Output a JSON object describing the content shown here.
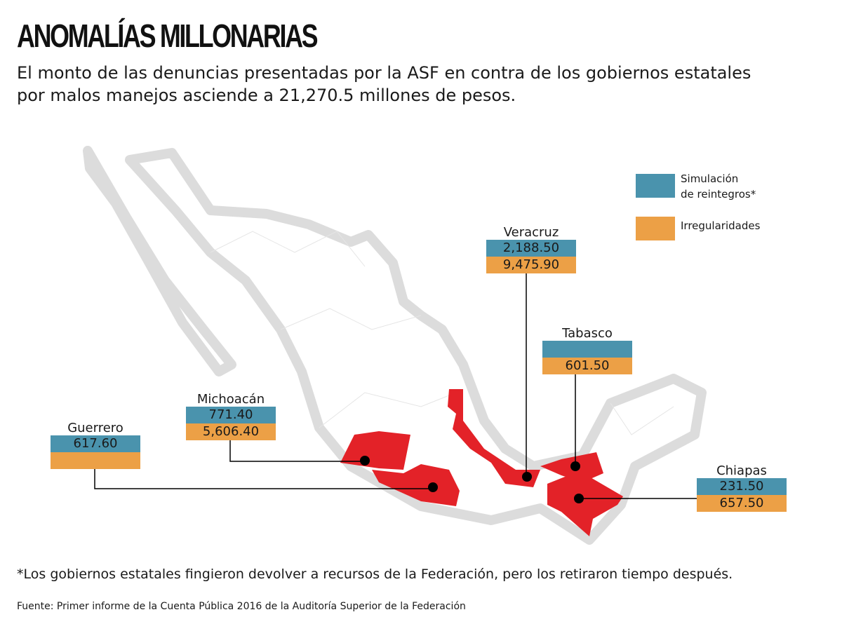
{
  "title": "ANOMALÍAS MILLONARIAS",
  "subtitle_line1": "El monto de las denuncias presentadas por la ASF en contra de los gobiernos estatales",
  "subtitle_line2": "por malos manejos asciende a 21,270.5 millones de pesos.",
  "legend": {
    "simulacion_line1": "Simulación",
    "simulacion_line2": "de reintegros*",
    "irregularidades": "Irregularidades"
  },
  "colors": {
    "simulacion": "#4a93ad",
    "irregularidades": "#eca046",
    "highlight": "#e32228",
    "outline": "#dcdcdc"
  },
  "states": [
    {
      "name": "Guerrero",
      "simulacion": "617.60",
      "irregularidades": ""
    },
    {
      "name": "Michoacán",
      "simulacion": "771.40",
      "irregularidades": "5,606.40"
    },
    {
      "name": "Veracruz",
      "simulacion": "2,188.50",
      "irregularidades": "9,475.90"
    },
    {
      "name": "Tabasco",
      "simulacion": "",
      "irregularidades": "601.50"
    },
    {
      "name": "Chiapas",
      "simulacion": "231.50",
      "irregularidades": "657.50"
    }
  ],
  "footnote": "*Los gobiernos estatales fingieron devolver a recursos de la Federación, pero los retiraron tiempo después.",
  "source": "Fuente: Primer informe de la Cuenta Pública 2016 de la Auditoría Superior de la Federación"
}
